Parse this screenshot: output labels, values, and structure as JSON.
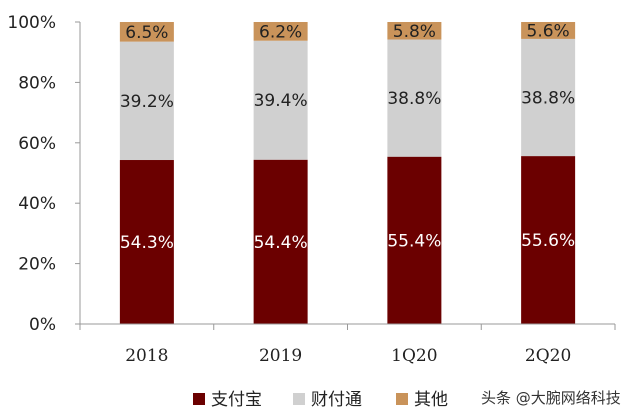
{
  "chart_data": {
    "type": "bar",
    "stacked": true,
    "categories": [
      "2018",
      "2019",
      "1Q20",
      "2Q20"
    ],
    "series": [
      {
        "name": "支付宝",
        "values": [
          54.3,
          54.4,
          55.4,
          55.6
        ],
        "labels": [
          "54.3%",
          "54.4%",
          "55.4%",
          "55.6%"
        ],
        "color": "#6b0000",
        "label_color": "#ffffff"
      },
      {
        "name": "财付通",
        "values": [
          39.2,
          39.4,
          38.8,
          38.8
        ],
        "labels": [
          "39.2%",
          "39.4%",
          "38.8%",
          "38.8%"
        ],
        "color": "#d0d0d0",
        "label_color": "#222222"
      },
      {
        "name": "其他",
        "values": [
          6.5,
          6.2,
          5.8,
          5.6
        ],
        "labels": [
          "6.5%",
          "6.2%",
          "5.8%",
          "5.6%"
        ],
        "color": "#c9935a",
        "label_color": "#222222"
      }
    ],
    "yticks": [
      "0%",
      "20%",
      "40%",
      "60%",
      "80%",
      "100%"
    ],
    "ylim": [
      0,
      100
    ],
    "grid": false,
    "legend_position": "bottom"
  },
  "watermark": "头条 @大腕网络科技"
}
